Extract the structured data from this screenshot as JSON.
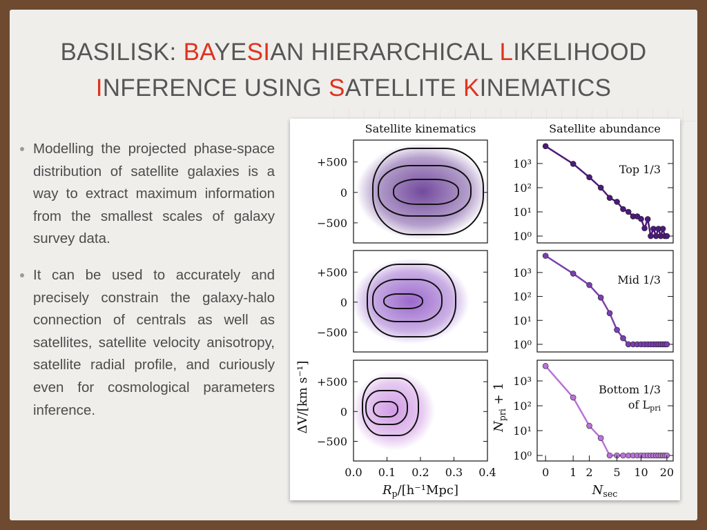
{
  "title": {
    "lines": [
      [
        {
          "text": "BASILISK: ",
          "red": false
        },
        {
          "text": "BA",
          "red": true
        },
        {
          "text": "YE",
          "red": false
        },
        {
          "text": "SI",
          "red": true
        },
        {
          "text": "AN HIERARCHICAL ",
          "red": false
        },
        {
          "text": "L",
          "red": true
        },
        {
          "text": "IKELIHOOD",
          "red": false
        }
      ],
      [
        {
          "text": "I",
          "red": true
        },
        {
          "text": "NFERENCE USING ",
          "red": false
        },
        {
          "text": "S",
          "red": true
        },
        {
          "text": "ATELLITE ",
          "red": false
        },
        {
          "text": "K",
          "red": true
        },
        {
          "text": "INEMATICS",
          "red": false
        }
      ]
    ]
  },
  "bullets": [
    "Modelling the projected phase-space distribution of satellite galaxies is a way to extract maximum information from the smallest scales of galaxy survey data.",
    "It can be used to accurately and precisely constrain the galaxy-halo connection of centrals as well as satellites, satellite velocity anisotropy, satellite radial profile, and curiously even for cosmological parameters inference."
  ],
  "kinematics_panels": [
    {
      "title": "Satellite kinematics",
      "xlim": [
        0,
        0.4
      ],
      "ylim": [
        -830,
        860
      ],
      "color": "#5a2a8c",
      "yticks": [
        {
          "value": 500,
          "label": "+500"
        },
        0,
        {
          "value": -500,
          "label": "−500"
        }
      ]
    },
    {
      "xlim": [
        0,
        0.4
      ],
      "ylim": [
        -830,
        860
      ],
      "color": "#8a4fc4",
      "yticks": [
        {
          "value": 500,
          "label": "+500"
        },
        0,
        {
          "value": -500,
          "label": "−500"
        }
      ]
    },
    {
      "xlim": [
        0,
        0.4
      ],
      "ylim": [
        -830,
        860
      ],
      "color": "#c98ae0",
      "yticks": [
        {
          "value": 500,
          "label": "+500"
        },
        0,
        {
          "value": -500,
          "label": "−500"
        }
      ],
      "y_label": "ΔV/[km s⁻¹]",
      "x_label": {
        "main": "R",
        "sub": "p",
        "rest": "/[h⁻¹Mpc]"
      },
      "xticks": [
        {
          "value": 0,
          "label": "0.0"
        },
        0.1,
        0.2,
        0.3,
        0.4
      ]
    }
  ],
  "chart_data": [
    {
      "type": "line",
      "title": "Satellite abundance",
      "xscale": "log1p",
      "yscale": "log",
      "color": "#4b1a7a",
      "annotation": [
        "Top 1/3"
      ],
      "xlim": [
        -0.19,
        23.6
      ],
      "ylim": [
        0.52,
        9300
      ],
      "yticks": [
        {
          "value": 1000,
          "label": "10³"
        },
        {
          "value": 100,
          "label": "10²"
        },
        {
          "value": 10,
          "label": "10¹"
        },
        {
          "value": 1,
          "label": "10⁰"
        }
      ],
      "x": [
        0,
        1,
        2,
        3,
        4,
        5,
        6,
        7,
        8,
        9,
        10,
        11,
        12,
        13,
        14,
        15,
        16,
        17,
        18,
        19,
        20
      ],
      "values": [
        5200,
        970,
        270,
        100,
        38,
        26,
        13,
        10,
        6.5,
        6.5,
        5.1,
        2.1,
        5,
        1,
        2,
        1,
        2,
        1,
        2,
        1,
        1
      ]
    },
    {
      "type": "line",
      "xscale": "log1p",
      "yscale": "log",
      "color": "#7a3fb0",
      "annotation": [
        "Mid 1/3"
      ],
      "xlim": [
        -0.19,
        23.6
      ],
      "ylim": [
        0.48,
        8300
      ],
      "yticks": [
        {
          "value": 1000,
          "label": "10³"
        },
        {
          "value": 100,
          "label": "10²"
        },
        {
          "value": 10,
          "label": "10¹"
        },
        {
          "value": 1,
          "label": "10⁰"
        }
      ],
      "x": [
        0,
        1,
        2,
        3,
        4,
        5,
        6,
        7,
        8,
        9,
        10,
        11,
        12,
        13,
        14,
        15,
        16,
        17,
        18,
        19,
        20
      ],
      "values": [
        5000,
        900,
        300,
        90,
        20,
        4,
        1.8,
        1,
        1,
        1,
        1,
        1,
        1,
        1,
        1,
        1,
        1,
        1,
        1,
        1,
        1
      ]
    },
    {
      "type": "line",
      "xscale": "log1p",
      "yscale": "log",
      "color": "#b873d6",
      "annotation": [
        "Bottom 1/3",
        "of L",
        "pri"
      ],
      "xlim": [
        -0.19,
        23.6
      ],
      "ylim": [
        0.6,
        6800
      ],
      "yticks": [
        {
          "value": 1000,
          "label": "10³"
        },
        {
          "value": 100,
          "label": "10²"
        },
        {
          "value": 10,
          "label": "10¹"
        },
        {
          "value": 1,
          "label": "10⁰"
        }
      ],
      "xticks": [
        0,
        1,
        2,
        5,
        10,
        20
      ],
      "y_label": {
        "main": "N",
        "sub": "pri",
        "rest": " + 1"
      },
      "x_label": {
        "main": "N",
        "sub": "sec"
      },
      "x": [
        0,
        1,
        2,
        3,
        4,
        5,
        6,
        7,
        8,
        9,
        10,
        11,
        12,
        13,
        14,
        15,
        16,
        17,
        18,
        19,
        20
      ],
      "values": [
        4000,
        215,
        15.6,
        5,
        1,
        1,
        1,
        1,
        1,
        1,
        1,
        1,
        1,
        1,
        1,
        1,
        1,
        1,
        1,
        1,
        1
      ]
    }
  ]
}
